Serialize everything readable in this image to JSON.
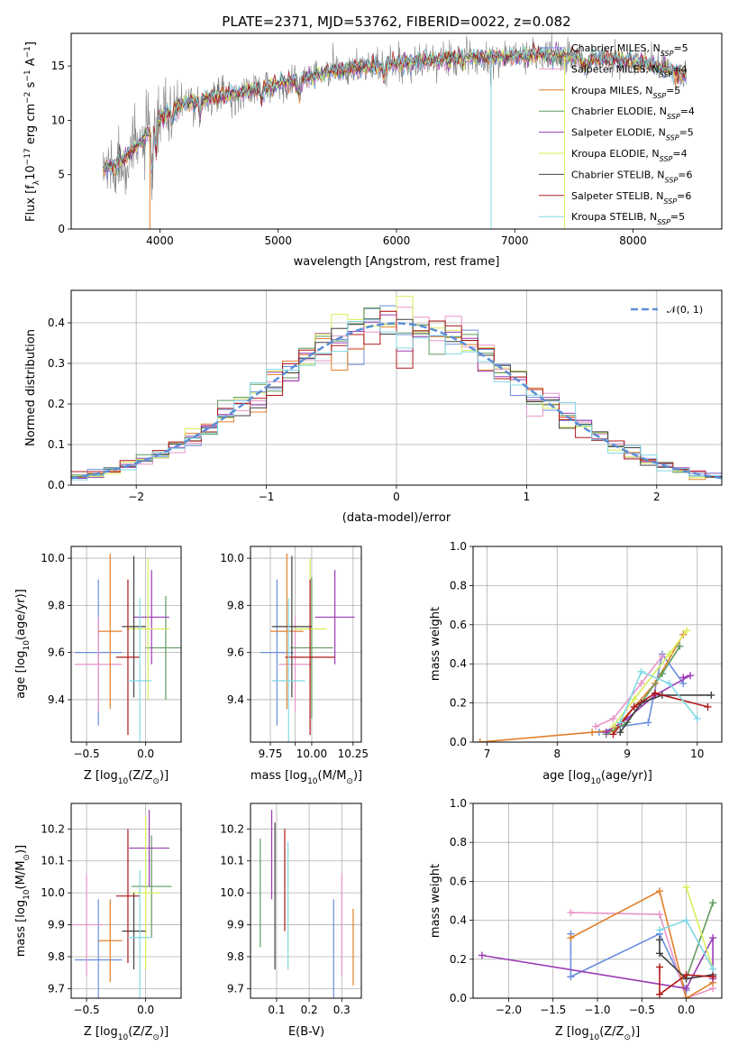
{
  "figure_title": "PLATE=2371, MJD=53762, FIBERID=0022, z=0.082",
  "models": [
    {
      "name": "Chabrier MILES, N",
      "sub": "SSP",
      "suffix": "=5",
      "color": "#6a8fe0"
    },
    {
      "name": "Salpeter MILES, N",
      "sub": "SSP",
      "suffix": "=4",
      "color": "#e895c8"
    },
    {
      "name": "Kroupa MILES, N",
      "sub": "SSP",
      "suffix": "=5",
      "color": "#e0802a"
    },
    {
      "name": "Chabrier ELODIE, N",
      "sub": "SSP",
      "suffix": "=4",
      "color": "#5e9a5e"
    },
    {
      "name": "Salpeter ELODIE, N",
      "sub": "SSP",
      "suffix": "=5",
      "color": "#9b3bb5"
    },
    {
      "name": "Kroupa ELODIE, N",
      "sub": "SSP",
      "suffix": "=4",
      "color": "#d8ee5a"
    },
    {
      "name": "Chabrier STELIB, N",
      "sub": "SSP",
      "suffix": "=6",
      "color": "#404040"
    },
    {
      "name": "Salpeter STELIB, N",
      "sub": "SSP",
      "suffix": "=6",
      "color": "#b01818"
    },
    {
      "name": "Kroupa STELIB, N",
      "sub": "SSP",
      "suffix": "=5",
      "color": "#80d8e6"
    }
  ],
  "chart_data": [
    {
      "id": "spectrum",
      "type": "line",
      "xlabel": "wavelength [Angstrom, rest frame]",
      "ylabel": "Flux [f",
      "ylabel_sub": "λ",
      "ylabel_rest": "10",
      "ylabel_exp": "−17",
      "ylabel_tail": " erg cm",
      "ylabel_exp2": "−2",
      "ylabel_tail2": " s",
      "ylabel_exp3": "−1",
      "ylabel_tail3": " A",
      "ylabel_exp4": "−1",
      "ylabel_end": "]",
      "xlim": [
        3250,
        8750
      ],
      "ylim": [
        0,
        18
      ],
      "xticks": [
        4000,
        5000,
        6000,
        7000,
        8000
      ],
      "yticks": [
        0,
        5,
        10,
        15
      ],
      "data_color": "#808080",
      "continuum": {
        "x": [
          3500,
          3600,
          3700,
          3800,
          3900,
          4000,
          4100,
          4200,
          4400,
          4600,
          4800,
          5000,
          5200,
          5400,
          5600,
          5800,
          6000,
          6200,
          6400,
          6600,
          6800,
          7000,
          7200,
          7400,
          7600,
          7800,
          8000,
          8200,
          8400
        ],
        "y": [
          5.5,
          5.8,
          6.5,
          7.5,
          8.8,
          10.2,
          11.0,
          11.5,
          12.0,
          12.3,
          12.8,
          13.3,
          13.8,
          14.3,
          14.8,
          15.0,
          15.2,
          15.4,
          15.6,
          15.8,
          15.8,
          15.9,
          16.0,
          15.9,
          15.8,
          15.6,
          15.4,
          15.0,
          14.2
        ]
      }
    },
    {
      "id": "residuals",
      "type": "histogram",
      "xlabel": "(data-model)/error",
      "ylabel": "Normed distribution",
      "xlim": [
        -2.5,
        2.5
      ],
      "ylim": [
        0,
        0.48
      ],
      "xticks": [
        -2,
        -1,
        0,
        1,
        2
      ],
      "yticks": [
        0.0,
        0.1,
        0.2,
        0.3,
        0.4
      ],
      "legend": "𝒩(0, 1)",
      "normal_color": "#5b8fd6"
    },
    {
      "id": "age_vs_z",
      "type": "errorbar",
      "xlabel_main": "Z [log",
      "xlabel_sub": "10",
      "xlabel_end": "(Z/Z",
      "xlabel_sub2": "⊙",
      "xlabel_close": ")]",
      "ylabel_main": "age  [log",
      "ylabel_sub": "10",
      "ylabel_end": "(age/yr)]",
      "xlim": [
        -0.63,
        0.3
      ],
      "ylim": [
        9.22,
        10.05
      ],
      "xticks": [
        -0.5,
        0.0
      ],
      "yticks": [
        9.4,
        9.6,
        9.8,
        10.0
      ],
      "points": [
        {
          "x": -0.4,
          "y": 9.6,
          "xerr": 0.2,
          "yerr": 0.31
        },
        {
          "x": -0.4,
          "y": 9.55,
          "xerr": 0.2,
          "yerr": 0.2
        },
        {
          "x": -0.3,
          "y": 9.69,
          "xerr": 0.1,
          "yerr": 0.33
        },
        {
          "x": 0.17,
          "y": 9.62,
          "xerr": 0.17,
          "yerr": 0.22
        },
        {
          "x": 0.05,
          "y": 9.75,
          "xerr": 0.15,
          "yerr": 0.2
        },
        {
          "x": 0.02,
          "y": 9.7,
          "xerr": 0.18,
          "yerr": 0.3
        },
        {
          "x": -0.1,
          "y": 9.71,
          "xerr": 0.1,
          "yerr": 0.3
        },
        {
          "x": -0.15,
          "y": 9.58,
          "xerr": 0.1,
          "yerr": 0.33
        },
        {
          "x": -0.05,
          "y": 9.48,
          "xerr": 0.1,
          "yerr": 0.35
        }
      ]
    },
    {
      "id": "age_vs_mass",
      "type": "errorbar",
      "xlabel_main": "mass [log",
      "xlabel_sub": "10",
      "xlabel_end": "(M/M",
      "xlabel_sub2": "⊙",
      "xlabel_close": ")]",
      "xlim": [
        9.63,
        10.3
      ],
      "ylim": [
        9.22,
        10.05
      ],
      "xticks": [
        9.75,
        9.9,
        10.0,
        10.25
      ],
      "xtick_labels": [
        "9.75",
        "",
        "10.00",
        "10.25"
      ],
      "yticks": [
        9.4,
        9.6,
        9.8,
        10.0
      ],
      "points": [
        {
          "x": 9.79,
          "y": 9.6,
          "xerr": 0.1,
          "yerr": 0.31
        },
        {
          "x": 9.9,
          "y": 9.55,
          "xerr": 0.1,
          "yerr": 0.2
        },
        {
          "x": 9.85,
          "y": 9.69,
          "xerr": 0.1,
          "yerr": 0.33
        },
        {
          "x": 10.0,
          "y": 9.62,
          "xerr": 0.13,
          "yerr": 0.3
        },
        {
          "x": 10.14,
          "y": 9.75,
          "xerr": 0.12,
          "yerr": 0.2
        },
        {
          "x": 9.99,
          "y": 9.7,
          "xerr": 0.1,
          "yerr": 0.3
        },
        {
          "x": 9.88,
          "y": 9.71,
          "xerr": 0.12,
          "yerr": 0.3
        },
        {
          "x": 9.99,
          "y": 9.58,
          "xerr": 0.15,
          "yerr": 0.33
        },
        {
          "x": 9.86,
          "y": 9.48,
          "xerr": 0.1,
          "yerr": 0.35
        }
      ]
    },
    {
      "id": "weight_vs_age",
      "type": "line",
      "xlabel_main": "age  [log",
      "xlabel_sub": "10",
      "xlabel_end": "(age/yr)]",
      "ylabel": "mass weight",
      "xlim": [
        6.8,
        10.35
      ],
      "ylim": [
        0,
        1.0
      ],
      "xticks": [
        7,
        8,
        9,
        10
      ],
      "yticks": [
        0.0,
        0.2,
        0.4,
        0.6,
        0.8,
        1.0
      ]
    },
    {
      "id": "mass_vs_z",
      "type": "errorbar",
      "xlabel_main": "Z [log",
      "xlabel_sub": "10",
      "xlabel_end": "(Z/Z",
      "xlabel_sub2": "⊙",
      "xlabel_close": ")]",
      "ylabel_main": "mass [log",
      "ylabel_sub": "10",
      "ylabel_end": "(M/M",
      "ylabel_sub2": "⊙",
      "ylabel_close": ")]",
      "xlim": [
        -0.63,
        0.3
      ],
      "ylim": [
        9.67,
        10.28
      ],
      "xticks": [
        -0.5,
        0.0
      ],
      "yticks": [
        9.7,
        9.8,
        9.9,
        10.0,
        10.1,
        10.2
      ],
      "points": [
        {
          "x": -0.4,
          "y": 9.79,
          "xerr": 0.2,
          "yerr": 0.19
        },
        {
          "x": -0.5,
          "y": 9.9,
          "xerr": 0.14,
          "yerr": 0.16
        },
        {
          "x": -0.3,
          "y": 9.85,
          "xerr": 0.1,
          "yerr": 0.13
        },
        {
          "x": 0.05,
          "y": 10.02,
          "xerr": 0.17,
          "yerr": 0.16
        },
        {
          "x": 0.03,
          "y": 10.14,
          "xerr": 0.17,
          "yerr": 0.12
        },
        {
          "x": 0.0,
          "y": 10.0,
          "xerr": 0.12,
          "yerr": 0.24
        },
        {
          "x": -0.1,
          "y": 9.88,
          "xerr": 0.1,
          "yerr": 0.12
        },
        {
          "x": -0.15,
          "y": 9.99,
          "xerr": 0.1,
          "yerr": 0.21
        },
        {
          "x": -0.05,
          "y": 9.86,
          "xerr": 0.1,
          "yerr": 0.21
        }
      ]
    },
    {
      "id": "mass_vs_ebv",
      "type": "errorbar",
      "xlabel": "E(B-V)",
      "xlim": [
        0.02,
        0.36
      ],
      "ylim": [
        9.67,
        10.28
      ],
      "xticks": [
        0.1,
        0.2,
        0.3
      ],
      "yticks": [
        9.7,
        9.8,
        9.9,
        10.0,
        10.1,
        10.2
      ],
      "points": [
        {
          "x": 0.275,
          "y": 9.79,
          "xerr": 0.0,
          "yerr": 0.19
        },
        {
          "x": 0.3,
          "y": 9.9,
          "xerr": 0.0,
          "yerr": 0.16
        },
        {
          "x": 0.335,
          "y": 9.83,
          "xerr": 0.0,
          "yerr": 0.12
        },
        {
          "x": 0.05,
          "y": 10.0,
          "xerr": 0.0,
          "yerr": 0.17
        },
        {
          "x": 0.085,
          "y": 10.12,
          "xerr": 0.0,
          "yerr": 0.14
        },
        {
          "x": 0.135,
          "y": 9.95,
          "xerr": 0.0,
          "yerr": 0.19
        },
        {
          "x": 0.095,
          "y": 9.99,
          "xerr": 0.0,
          "yerr": 0.23
        },
        {
          "x": 0.125,
          "y": 10.04,
          "xerr": 0.0,
          "yerr": 0.16
        },
        {
          "x": 0.135,
          "y": 9.96,
          "xerr": 0.0,
          "yerr": 0.2
        }
      ]
    },
    {
      "id": "weight_vs_z",
      "type": "line",
      "xlabel_main": "Z [log",
      "xlabel_sub": "10",
      "xlabel_end": "(Z/Z",
      "xlabel_sub2": "⊙",
      "xlabel_close": ")]",
      "ylabel": "mass weight",
      "xlim": [
        -2.4,
        0.4
      ],
      "ylim": [
        0,
        1.0
      ],
      "xticks": [
        -2.0,
        -1.5,
        -1.0,
        -0.5,
        0.0
      ],
      "yticks": [
        0.0,
        0.2,
        0.4,
        0.6,
        0.8,
        1.0
      ]
    }
  ]
}
